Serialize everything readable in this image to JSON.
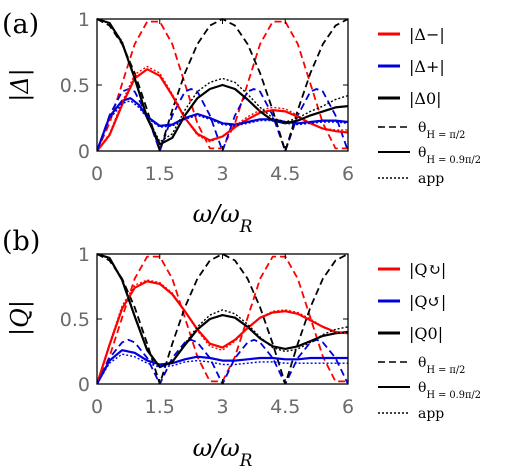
{
  "chart_data": [
    {
      "panel": "(a)",
      "type": "line",
      "xlabel": "ω/ω_R",
      "ylabel": "|Δ|",
      "xlim": [
        0,
        6
      ],
      "ylim": [
        0,
        1
      ],
      "xticks": [
        "0",
        "1.5",
        "3",
        "4.5",
        "6"
      ],
      "yticks": [
        "0",
        "0.5",
        "1"
      ],
      "legend": [
        "|Δ−|",
        "|Δ+|",
        "|Δ0|"
      ],
      "style_legend": [
        "θ_H = π/2",
        "θ_H = 0.9π/2",
        "app"
      ],
      "series": [
        {
          "name": "|Δ−|",
          "style": "dashed",
          "color": "#ff0000",
          "x": [
            0,
            0.3,
            0.6,
            0.9,
            1.2,
            1.5,
            1.8,
            2.1,
            2.4,
            2.7,
            3.0,
            3.3,
            3.6,
            3.9,
            4.2,
            4.5,
            4.8,
            5.1,
            5.4,
            5.7,
            6.0
          ],
          "y": [
            0,
            0.21,
            0.51,
            0.81,
            0.98,
            0.98,
            0.81,
            0.51,
            0.21,
            0.02,
            0.02,
            0.21,
            0.51,
            0.81,
            0.98,
            0.98,
            0.81,
            0.51,
            0.21,
            0.02,
            0.02
          ]
        },
        {
          "name": "|Δ+|",
          "style": "dashed",
          "color": "#0000dd",
          "x": [
            0,
            0.3,
            0.6,
            0.75,
            0.9,
            1.2,
            1.5,
            1.8,
            2.1,
            2.25,
            2.4,
            2.7,
            3.0,
            3.3,
            3.6,
            3.75,
            3.9,
            4.2,
            4.5,
            4.8,
            5.1,
            5.25,
            5.4,
            5.7,
            6.0
          ],
          "y": [
            0,
            0.27,
            0.45,
            0.47,
            0.45,
            0.27,
            0.0,
            0.27,
            0.45,
            0.47,
            0.45,
            0.27,
            0.0,
            0.27,
            0.45,
            0.47,
            0.45,
            0.27,
            0.0,
            0.27,
            0.45,
            0.47,
            0.45,
            0.27,
            0.0
          ]
        },
        {
          "name": "|Δ0|",
          "style": "dashed",
          "color": "#000000",
          "x": [
            0,
            0.3,
            0.6,
            0.9,
            1.2,
            1.5,
            1.8,
            2.1,
            2.4,
            2.7,
            3.0,
            3.3,
            3.6,
            3.9,
            4.2,
            4.5,
            4.8,
            5.1,
            5.4,
            5.7,
            6.0
          ],
          "y": [
            1.0,
            0.95,
            0.81,
            0.59,
            0.31,
            0.0,
            0.31,
            0.59,
            0.81,
            0.95,
            1.0,
            0.95,
            0.81,
            0.59,
            0.31,
            0.0,
            0.31,
            0.59,
            0.81,
            0.95,
            1.0
          ]
        },
        {
          "name": "|Δ−|",
          "style": "solid",
          "color": "#ff0000",
          "x": [
            0,
            0.3,
            0.6,
            0.9,
            1.2,
            1.5,
            1.8,
            2.1,
            2.4,
            2.7,
            3.0,
            3.3,
            3.6,
            3.9,
            4.2,
            4.5,
            4.8,
            5.1,
            5.4,
            5.7,
            6.0
          ],
          "y": [
            0,
            0.12,
            0.35,
            0.55,
            0.62,
            0.57,
            0.42,
            0.25,
            0.13,
            0.08,
            0.11,
            0.18,
            0.24,
            0.29,
            0.31,
            0.3,
            0.26,
            0.21,
            0.17,
            0.15,
            0.14
          ]
        },
        {
          "name": "|Δ+|",
          "style": "solid",
          "color": "#0000dd",
          "x": [
            0,
            0.3,
            0.6,
            0.8,
            1.0,
            1.2,
            1.5,
            1.8,
            2.1,
            2.4,
            2.7,
            3.0,
            3.3,
            3.6,
            3.9,
            4.2,
            4.5,
            4.8,
            5.1,
            5.4,
            5.7,
            6.0
          ],
          "y": [
            0,
            0.26,
            0.38,
            0.4,
            0.35,
            0.26,
            0.19,
            0.2,
            0.25,
            0.28,
            0.25,
            0.21,
            0.2,
            0.22,
            0.24,
            0.24,
            0.22,
            0.21,
            0.22,
            0.23,
            0.23,
            0.22
          ]
        },
        {
          "name": "|Δ0|",
          "style": "solid",
          "color": "#000000",
          "x": [
            0,
            0.3,
            0.6,
            0.9,
            1.2,
            1.5,
            1.8,
            2.1,
            2.4,
            2.7,
            3.0,
            3.3,
            3.6,
            3.9,
            4.2,
            4.5,
            4.8,
            5.1,
            5.4,
            5.7,
            6.0
          ],
          "y": [
            1.0,
            0.97,
            0.82,
            0.55,
            0.25,
            0.05,
            0.1,
            0.27,
            0.4,
            0.47,
            0.5,
            0.47,
            0.39,
            0.3,
            0.23,
            0.21,
            0.23,
            0.27,
            0.3,
            0.33,
            0.34
          ]
        },
        {
          "name": "|Δ−| app",
          "style": "dotted",
          "color": "#ff0000",
          "x": [
            0,
            0.3,
            0.6,
            0.9,
            1.2,
            1.5,
            1.8,
            2.1,
            2.4,
            2.7,
            3.0,
            3.3,
            3.6,
            3.9,
            4.2,
            4.5,
            4.8,
            5.1,
            5.4,
            5.7,
            6.0
          ],
          "y": [
            0,
            0.13,
            0.37,
            0.58,
            0.64,
            0.59,
            0.43,
            0.25,
            0.12,
            0.07,
            0.11,
            0.19,
            0.26,
            0.31,
            0.33,
            0.32,
            0.27,
            0.21,
            0.17,
            0.16,
            0.16
          ]
        },
        {
          "name": "|Δ+| app",
          "style": "dotted",
          "color": "#0000dd",
          "x": [
            0,
            0.3,
            0.6,
            0.8,
            1.0,
            1.2,
            1.5,
            1.8,
            2.1,
            2.4,
            2.7,
            3.0,
            3.3,
            3.6,
            3.9,
            4.2,
            4.5,
            4.8,
            5.1,
            5.4,
            5.7,
            6.0
          ],
          "y": [
            0,
            0.24,
            0.36,
            0.38,
            0.33,
            0.25,
            0.18,
            0.19,
            0.24,
            0.27,
            0.24,
            0.2,
            0.19,
            0.21,
            0.23,
            0.23,
            0.21,
            0.2,
            0.21,
            0.22,
            0.22,
            0.21
          ]
        },
        {
          "name": "|Δ0| app",
          "style": "dotted",
          "color": "#000000",
          "x": [
            0,
            0.3,
            0.6,
            0.9,
            1.2,
            1.5,
            1.8,
            2.1,
            2.4,
            2.7,
            3.0,
            3.3,
            3.6,
            3.9,
            4.2,
            4.5,
            4.8,
            5.1,
            5.4,
            5.7,
            6.0
          ],
          "y": [
            1.0,
            0.97,
            0.83,
            0.56,
            0.26,
            0.07,
            0.13,
            0.31,
            0.45,
            0.52,
            0.55,
            0.52,
            0.43,
            0.33,
            0.25,
            0.22,
            0.25,
            0.3,
            0.34,
            0.39,
            0.42
          ]
        }
      ]
    },
    {
      "panel": "(b)",
      "type": "line",
      "xlabel": "ω/ω_R",
      "ylabel": "|Q|",
      "xlim": [
        0,
        6
      ],
      "ylim": [
        0,
        1
      ],
      "xticks": [
        "0",
        "1.5",
        "3",
        "4.5",
        "6"
      ],
      "yticks": [
        "0",
        "0.5",
        "1"
      ],
      "legend": [
        "|Q↻|",
        "|Q↺|",
        "|Q0|"
      ],
      "style_legend": [
        "θ_H = π/2",
        "θ_H = 0.9π/2",
        "app"
      ],
      "series": [
        {
          "name": "|Q↻|",
          "style": "dashed",
          "color": "#ff0000",
          "x": [
            0,
            0.3,
            0.6,
            0.9,
            1.2,
            1.5,
            1.8,
            2.1,
            2.4,
            2.7,
            3.0,
            3.3,
            3.6,
            3.9,
            4.2,
            4.5,
            4.8,
            5.1,
            5.4,
            5.7,
            6.0
          ],
          "y": [
            0,
            0.21,
            0.51,
            0.81,
            0.98,
            0.98,
            0.81,
            0.51,
            0.21,
            0.02,
            0.02,
            0.21,
            0.51,
            0.81,
            0.98,
            0.98,
            0.81,
            0.51,
            0.21,
            0.02,
            0.02
          ]
        },
        {
          "name": "|Q↺|",
          "style": "dashed",
          "color": "#0000dd",
          "x": [
            0,
            0.3,
            0.6,
            0.75,
            0.9,
            1.2,
            1.5,
            1.8,
            2.1,
            2.25,
            2.4,
            2.7,
            3.0,
            3.3,
            3.6,
            3.75,
            3.9,
            4.2,
            4.5,
            4.8,
            5.1,
            5.25,
            5.4,
            5.7,
            6.0
          ],
          "y": [
            0,
            0.2,
            0.32,
            0.34,
            0.32,
            0.2,
            0.0,
            0.2,
            0.32,
            0.34,
            0.32,
            0.2,
            0.0,
            0.2,
            0.32,
            0.34,
            0.32,
            0.2,
            0.0,
            0.2,
            0.32,
            0.34,
            0.32,
            0.2,
            0.0
          ]
        },
        {
          "name": "|Q0|",
          "style": "dashed",
          "color": "#000000",
          "x": [
            0,
            0.3,
            0.6,
            0.9,
            1.2,
            1.5,
            1.8,
            2.1,
            2.4,
            2.7,
            3.0,
            3.3,
            3.6,
            3.9,
            4.2,
            4.5,
            4.8,
            5.1,
            5.4,
            5.7,
            6.0
          ],
          "y": [
            1.0,
            0.95,
            0.81,
            0.59,
            0.31,
            0.0,
            0.31,
            0.59,
            0.81,
            0.95,
            1.0,
            0.95,
            0.81,
            0.59,
            0.31,
            0.0,
            0.31,
            0.59,
            0.81,
            0.95,
            1.0
          ]
        },
        {
          "name": "|Q↻|",
          "style": "solid",
          "color": "#ff0000",
          "x": [
            0,
            0.3,
            0.6,
            0.9,
            1.2,
            1.5,
            1.8,
            2.1,
            2.4,
            2.7,
            3.0,
            3.3,
            3.6,
            3.9,
            4.2,
            4.5,
            4.8,
            5.1,
            5.4,
            5.7,
            6.0
          ],
          "y": [
            0,
            0.3,
            0.58,
            0.74,
            0.79,
            0.77,
            0.69,
            0.56,
            0.42,
            0.31,
            0.28,
            0.34,
            0.43,
            0.51,
            0.55,
            0.56,
            0.54,
            0.49,
            0.44,
            0.4,
            0.39
          ]
        },
        {
          "name": "|Q↺|",
          "style": "solid",
          "color": "#0000dd",
          "x": [
            0,
            0.3,
            0.6,
            0.9,
            1.2,
            1.5,
            1.8,
            2.1,
            2.4,
            2.7,
            3.0,
            3.3,
            3.6,
            3.9,
            4.2,
            4.5,
            4.8,
            5.1,
            5.4,
            5.7,
            6.0
          ],
          "y": [
            0,
            0.18,
            0.26,
            0.24,
            0.18,
            0.15,
            0.16,
            0.19,
            0.21,
            0.2,
            0.18,
            0.18,
            0.19,
            0.2,
            0.2,
            0.19,
            0.19,
            0.2,
            0.2,
            0.2,
            0.2
          ]
        },
        {
          "name": "|Q0|",
          "style": "solid",
          "color": "#000000",
          "x": [
            0,
            0.3,
            0.6,
            0.9,
            1.2,
            1.5,
            1.8,
            2.1,
            2.4,
            2.7,
            3.0,
            3.3,
            3.6,
            3.9,
            4.2,
            4.5,
            4.8,
            5.1,
            5.4,
            5.7,
            6.0
          ],
          "y": [
            1.0,
            0.97,
            0.8,
            0.52,
            0.26,
            0.13,
            0.17,
            0.3,
            0.42,
            0.5,
            0.53,
            0.51,
            0.44,
            0.35,
            0.29,
            0.27,
            0.29,
            0.33,
            0.37,
            0.39,
            0.4
          ]
        },
        {
          "name": "|Q↻| app",
          "style": "dotted",
          "color": "#ff0000",
          "x": [
            0,
            0.3,
            0.6,
            0.9,
            1.2,
            1.5,
            1.8,
            2.1,
            2.4,
            2.7,
            3.0,
            3.3,
            3.6,
            3.9,
            4.2,
            4.5,
            4.8,
            5.1,
            5.4,
            5.7,
            6.0
          ],
          "y": [
            0,
            0.31,
            0.6,
            0.76,
            0.8,
            0.78,
            0.7,
            0.56,
            0.41,
            0.29,
            0.26,
            0.33,
            0.43,
            0.51,
            0.56,
            0.57,
            0.55,
            0.5,
            0.44,
            0.4,
            0.39
          ]
        },
        {
          "name": "|Q↺| app",
          "style": "dotted",
          "color": "#0000dd",
          "x": [
            0,
            0.3,
            0.6,
            0.9,
            1.2,
            1.5,
            1.8,
            2.1,
            2.4,
            2.7,
            3.0,
            3.3,
            3.6,
            3.9,
            4.2,
            4.5,
            4.8,
            5.1,
            5.4,
            5.7,
            6.0
          ],
          "y": [
            0,
            0.16,
            0.23,
            0.21,
            0.16,
            0.13,
            0.14,
            0.17,
            0.18,
            0.17,
            0.15,
            0.15,
            0.16,
            0.17,
            0.17,
            0.16,
            0.16,
            0.16,
            0.16,
            0.16,
            0.16
          ]
        },
        {
          "name": "|Q0| app",
          "style": "dotted",
          "color": "#000000",
          "x": [
            0,
            0.3,
            0.6,
            0.9,
            1.2,
            1.5,
            1.8,
            2.1,
            2.4,
            2.7,
            3.0,
            3.3,
            3.6,
            3.9,
            4.2,
            4.5,
            4.8,
            5.1,
            5.4,
            5.7,
            6.0
          ],
          "y": [
            1.0,
            0.97,
            0.81,
            0.53,
            0.27,
            0.13,
            0.17,
            0.31,
            0.44,
            0.53,
            0.57,
            0.54,
            0.46,
            0.36,
            0.28,
            0.25,
            0.27,
            0.32,
            0.38,
            0.42,
            0.44
          ]
        }
      ]
    }
  ]
}
